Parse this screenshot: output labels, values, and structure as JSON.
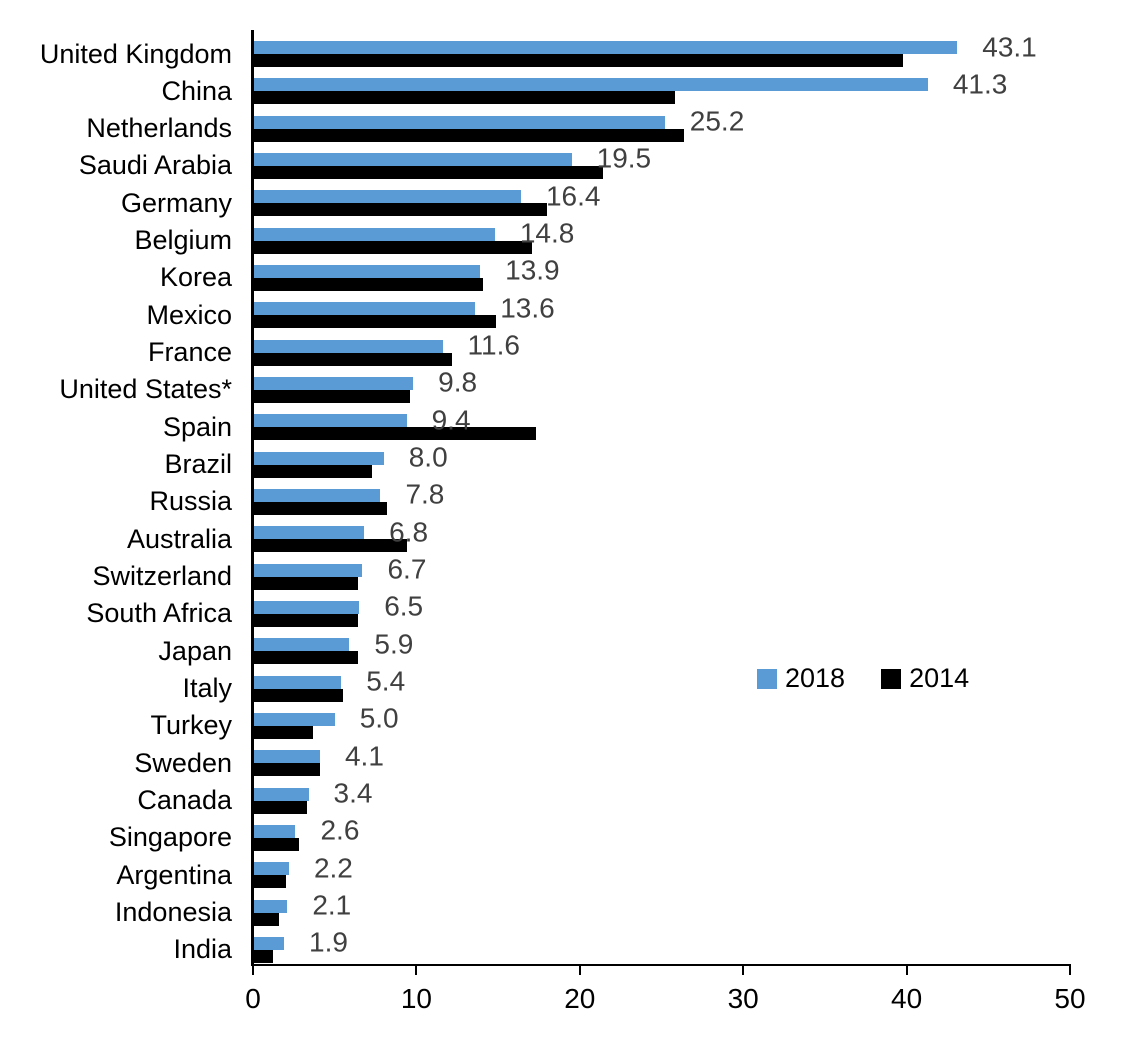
{
  "chart_data": {
    "type": "bar",
    "orientation": "horizontal",
    "title": "",
    "xlabel": "",
    "ylabel": "",
    "xlim": [
      0,
      50
    ],
    "x_ticks": [
      0,
      10,
      20,
      30,
      40,
      50
    ],
    "grid": false,
    "legend_position": "middle-right",
    "categories": [
      "United Kingdom",
      "China",
      "Netherlands",
      "Saudi Arabia",
      "Germany",
      "Belgium",
      "Korea",
      "Mexico",
      "France",
      "United States*",
      "Spain",
      "Brazil",
      "Russia",
      "Australia",
      "Switzerland",
      "South Africa",
      "Japan",
      "Italy",
      "Turkey",
      "Sweden",
      "Canada",
      "Singapore",
      "Argentina",
      "Indonesia",
      "India"
    ],
    "series": [
      {
        "name": "2018",
        "color": "#5B9BD5",
        "values": [
          43.1,
          41.3,
          25.2,
          19.5,
          16.4,
          14.8,
          13.9,
          13.6,
          11.6,
          9.8,
          9.4,
          8.0,
          7.8,
          6.8,
          6.7,
          6.5,
          5.9,
          5.4,
          5.0,
          4.1,
          3.4,
          2.6,
          2.2,
          2.1,
          1.9
        ]
      },
      {
        "name": "2014",
        "color": "#000000",
        "values": [
          39.8,
          25.8,
          26.4,
          21.4,
          18.0,
          17.1,
          14.1,
          14.9,
          12.2,
          9.6,
          17.3,
          7.3,
          8.2,
          9.4,
          6.4,
          6.4,
          6.4,
          5.5,
          3.7,
          4.1,
          3.3,
          2.8,
          2.0,
          1.6,
          1.2
        ]
      }
    ],
    "data_labels": [
      "43.1",
      "41.3",
      "25.2",
      "19.5",
      "16.4",
      "14.8",
      "13.9",
      "13.6",
      "11.6",
      "9.8",
      "9.4",
      "8.0",
      "7.8",
      "6.8",
      "6.7",
      "6.5",
      "5.9",
      "5.4",
      "5.0",
      "4.1",
      "3.4",
      "2.6",
      "2.2",
      "2.1",
      "1.9"
    ],
    "data_label_series": "2018",
    "data_label_color": "#404040"
  },
  "legend": {
    "items": [
      {
        "label": "2018",
        "color": "#5B9BD5"
      },
      {
        "label": "2014",
        "color": "#000000"
      }
    ]
  },
  "axis": {
    "tick_labels": [
      "0",
      "10",
      "20",
      "30",
      "40",
      "50"
    ],
    "color": "#000000"
  }
}
